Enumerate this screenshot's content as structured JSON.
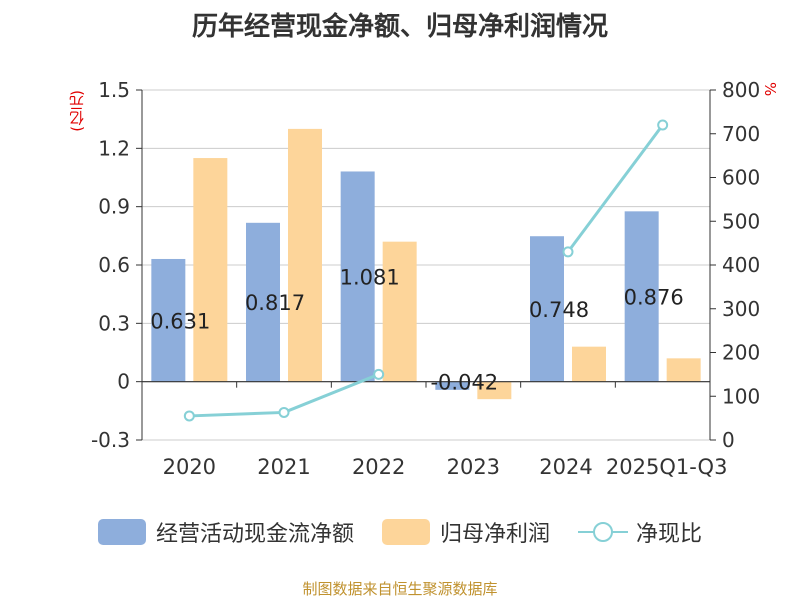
{
  "chart_data": {
    "type": "bar+line",
    "title": "历年经营现金净额、归母净利润情况",
    "categories": [
      "2020",
      "2021",
      "2022",
      "2023",
      "2024",
      "2025Q1-Q3"
    ],
    "series": [
      {
        "name": "经营活动现金流净额",
        "type": "bar",
        "axis": "left",
        "color": "#8eaedc",
        "values": [
          0.631,
          0.817,
          1.081,
          -0.042,
          0.748,
          0.876
        ],
        "labels": [
          "0.631",
          "0.817",
          "1.081",
          "-0.042",
          "0.748",
          "0.876"
        ]
      },
      {
        "name": "归母净利润",
        "type": "bar",
        "axis": "left",
        "color": "#fdd59a",
        "values": [
          1.15,
          1.3,
          0.72,
          -0.09,
          0.18,
          0.12
        ]
      },
      {
        "name": "净现比",
        "type": "line",
        "axis": "right",
        "color": "#86d0d6",
        "values": [
          55,
          63,
          150,
          null,
          430,
          720
        ]
      }
    ],
    "y_left": {
      "unit": "(亿元)",
      "min": -0.3,
      "max": 1.5,
      "ticks": [
        -0.3,
        0,
        0.3,
        0.6,
        0.9,
        1.2,
        1.5
      ],
      "tick_labels": [
        "-0.3",
        "0",
        "0.3",
        "0.6",
        "0.9",
        "1.2",
        "1.5"
      ]
    },
    "y_right": {
      "unit": "%",
      "min": 0,
      "max": 800,
      "ticks": [
        0,
        100,
        200,
        300,
        400,
        500,
        600,
        700,
        800
      ],
      "tick_labels": [
        "0",
        "100",
        "200",
        "300",
        "400",
        "500",
        "600",
        "700",
        "800"
      ]
    },
    "legend_position": "bottom",
    "source": "制图数据来自恒生聚源数据库"
  }
}
